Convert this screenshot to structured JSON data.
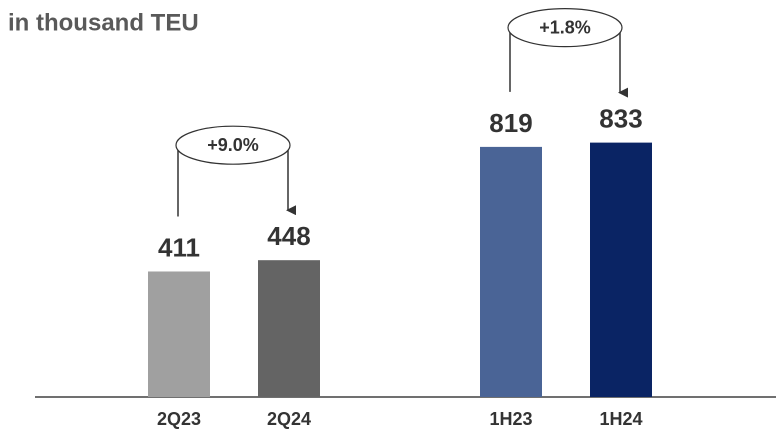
{
  "chart_data": {
    "type": "bar",
    "subtitle": "in thousand TEU",
    "categories": [
      "2Q23",
      "2Q24",
      "1H23",
      "1H24"
    ],
    "values": [
      411,
      448,
      819,
      833
    ],
    "colors": [
      "#a0a0a0",
      "#646464",
      "#4a6496",
      "#0a2464"
    ],
    "ylim": [
      0,
      1300
    ],
    "annotations": [
      "+9.0%",
      "+1.8%"
    ]
  }
}
